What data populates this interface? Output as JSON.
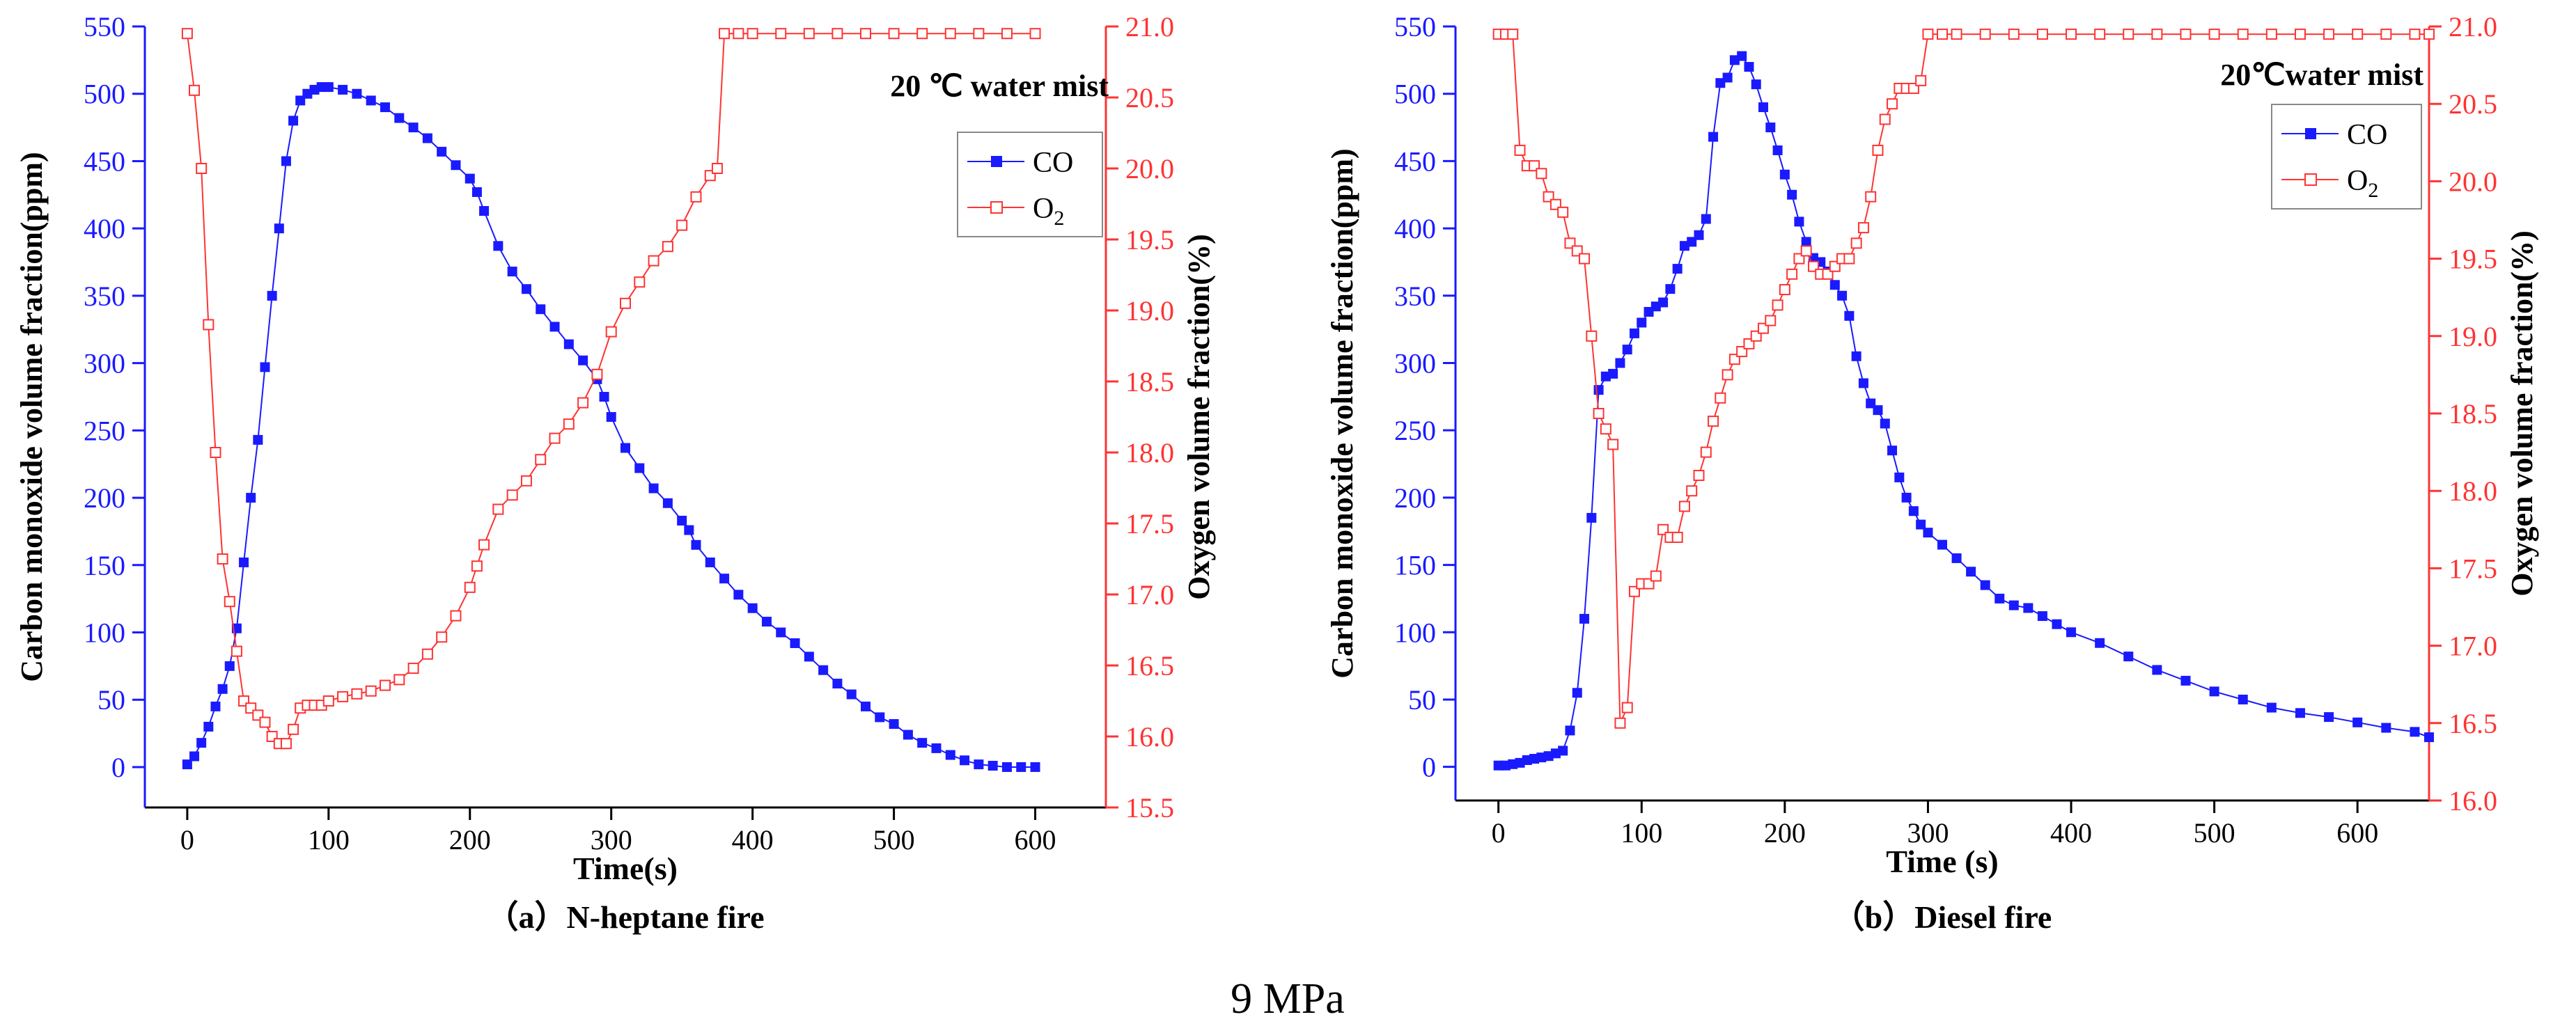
{
  "figure_caption": "9 MPa",
  "colors": {
    "co": "#1a1aff",
    "o2": "#ff3333",
    "axis": "#000000"
  },
  "chart_data": [
    {
      "type": "line",
      "panel_caption": "（a）N-heptane fire",
      "annotation": "20 ℃ water mist",
      "xlabel": "Time(s)",
      "ylabel": "Carbon monoxide volume fraction(ppm)",
      "y2label": "Oxygen volume fraction(%)",
      "xlim": [
        -30,
        650
      ],
      "ylim": [
        -30,
        550
      ],
      "y2lim": [
        15.5,
        21.0
      ],
      "xticks": [
        0,
        100,
        200,
        300,
        400,
        500,
        600
      ],
      "yticks": [
        0,
        50,
        100,
        150,
        200,
        250,
        300,
        350,
        400,
        450,
        500,
        550
      ],
      "y2ticks": [
        15.5,
        16.0,
        16.5,
        17.0,
        17.5,
        18.0,
        18.5,
        19.0,
        19.5,
        20.0,
        20.5,
        21.0
      ],
      "legend": {
        "position": "top-right",
        "entries": [
          "CO",
          "O2"
        ]
      },
      "series": [
        {
          "name": "CO",
          "axis": "left",
          "marker": "filled-square",
          "x": [
            0,
            5,
            10,
            15,
            20,
            25,
            30,
            35,
            40,
            45,
            50,
            55,
            60,
            65,
            70,
            75,
            80,
            85,
            90,
            95,
            100,
            110,
            120,
            130,
            140,
            150,
            160,
            170,
            180,
            190,
            200,
            205,
            210,
            220,
            230,
            240,
            250,
            260,
            270,
            280,
            290,
            295,
            300,
            310,
            320,
            330,
            340,
            350,
            355,
            360,
            370,
            380,
            390,
            400,
            410,
            420,
            430,
            440,
            450,
            460,
            470,
            480,
            490,
            500,
            510,
            520,
            530,
            540,
            550,
            560,
            570,
            580,
            590,
            600
          ],
          "values": [
            2,
            8,
            18,
            30,
            45,
            58,
            75,
            103,
            152,
            200,
            243,
            297,
            350,
            400,
            450,
            480,
            495,
            500,
            503,
            505,
            505,
            503,
            500,
            495,
            490,
            482,
            475,
            467,
            457,
            447,
            437,
            427,
            413,
            387,
            368,
            355,
            340,
            327,
            314,
            302,
            288,
            275,
            260,
            237,
            222,
            207,
            196,
            183,
            176,
            165,
            152,
            140,
            128,
            118,
            108,
            100,
            92,
            82,
            72,
            62,
            54,
            45,
            37,
            32,
            24,
            18,
            14,
            9,
            5,
            2,
            1,
            0,
            0,
            0
          ]
        },
        {
          "name": "O2",
          "axis": "right",
          "marker": "open-square",
          "x": [
            0,
            5,
            10,
            15,
            20,
            25,
            30,
            35,
            40,
            45,
            50,
            55,
            60,
            65,
            70,
            75,
            80,
            85,
            90,
            95,
            100,
            110,
            120,
            130,
            140,
            150,
            160,
            170,
            180,
            190,
            200,
            205,
            210,
            220,
            230,
            240,
            250,
            260,
            270,
            280,
            290,
            300,
            310,
            320,
            330,
            340,
            350,
            360,
            370,
            375,
            380,
            390,
            400,
            420,
            440,
            460,
            480,
            500,
            520,
            540,
            560,
            580,
            600
          ],
          "values": [
            20.95,
            20.55,
            20.0,
            18.9,
            18.0,
            17.25,
            16.95,
            16.6,
            16.25,
            16.2,
            16.15,
            16.1,
            16.0,
            15.95,
            15.95,
            16.05,
            16.2,
            16.22,
            16.22,
            16.22,
            16.25,
            16.28,
            16.3,
            16.32,
            16.36,
            16.4,
            16.48,
            16.58,
            16.7,
            16.85,
            17.05,
            17.2,
            17.35,
            17.6,
            17.7,
            17.8,
            17.95,
            18.1,
            18.2,
            18.35,
            18.55,
            18.85,
            19.05,
            19.2,
            19.35,
            19.45,
            19.6,
            19.8,
            19.95,
            20.0,
            20.95,
            20.95,
            20.95,
            20.95,
            20.95,
            20.95,
            20.95,
            20.95,
            20.95,
            20.95,
            20.95,
            20.95,
            20.95
          ]
        }
      ]
    },
    {
      "type": "line",
      "panel_caption": "（b）Diesel fire",
      "annotation": "20℃water mist",
      "xlabel": "Time (s)",
      "ylabel": "Carbon monoxide volume fraction(ppm)",
      "y2label": "Oxygen volume fraction(%)",
      "xlim": [
        -30,
        650
      ],
      "ylim": [
        -25,
        550
      ],
      "y2lim": [
        16.0,
        21.0
      ],
      "xticks": [
        0,
        100,
        200,
        300,
        400,
        500,
        600
      ],
      "yticks": [
        0,
        50,
        100,
        150,
        200,
        250,
        300,
        350,
        400,
        450,
        500,
        550
      ],
      "y2ticks": [
        16.0,
        16.5,
        17.0,
        17.5,
        18.0,
        18.5,
        19.0,
        19.5,
        20.0,
        20.5,
        21.0
      ],
      "legend": {
        "position": "top-right",
        "entries": [
          "CO",
          "O2"
        ]
      },
      "series": [
        {
          "name": "CO",
          "axis": "left",
          "marker": "filled-square",
          "x": [
            0,
            5,
            10,
            15,
            20,
            25,
            30,
            35,
            40,
            45,
            50,
            55,
            60,
            65,
            70,
            75,
            80,
            85,
            90,
            95,
            100,
            105,
            110,
            115,
            120,
            125,
            130,
            135,
            140,
            145,
            150,
            155,
            160,
            165,
            170,
            175,
            180,
            185,
            190,
            195,
            200,
            205,
            210,
            215,
            220,
            225,
            230,
            235,
            240,
            245,
            250,
            255,
            260,
            265,
            270,
            275,
            280,
            285,
            290,
            295,
            300,
            310,
            320,
            330,
            340,
            350,
            360,
            370,
            380,
            390,
            400,
            420,
            440,
            460,
            480,
            500,
            520,
            540,
            560,
            580,
            600,
            620,
            640,
            650
          ],
          "values": [
            1,
            1,
            2,
            3,
            5,
            6,
            7,
            8,
            10,
            12,
            27,
            55,
            110,
            185,
            280,
            290,
            292,
            300,
            310,
            322,
            330,
            338,
            342,
            345,
            355,
            370,
            387,
            390,
            395,
            407,
            468,
            508,
            512,
            525,
            528,
            520,
            507,
            490,
            475,
            458,
            440,
            425,
            405,
            390,
            378,
            375,
            368,
            358,
            350,
            335,
            305,
            285,
            270,
            265,
            255,
            235,
            215,
            200,
            190,
            180,
            174,
            165,
            155,
            145,
            135,
            125,
            120,
            118,
            112,
            106,
            100,
            92,
            82,
            72,
            64,
            56,
            50,
            44,
            40,
            37,
            33,
            29,
            26,
            22
          ]
        },
        {
          "name": "O2",
          "axis": "right",
          "marker": "open-square",
          "x": [
            0,
            5,
            10,
            15,
            20,
            25,
            30,
            35,
            40,
            45,
            50,
            55,
            60,
            65,
            70,
            75,
            80,
            85,
            90,
            95,
            100,
            105,
            110,
            115,
            120,
            125,
            130,
            135,
            140,
            145,
            150,
            155,
            160,
            165,
            170,
            175,
            180,
            185,
            190,
            195,
            200,
            205,
            210,
            215,
            220,
            225,
            230,
            235,
            240,
            245,
            250,
            255,
            260,
            265,
            270,
            275,
            280,
            285,
            290,
            295,
            300,
            310,
            320,
            340,
            360,
            380,
            400,
            420,
            440,
            460,
            480,
            500,
            520,
            540,
            560,
            580,
            600,
            620,
            640,
            650
          ],
          "values": [
            20.95,
            20.95,
            20.95,
            20.2,
            20.1,
            20.1,
            20.05,
            19.9,
            19.85,
            19.8,
            19.6,
            19.55,
            19.5,
            19.0,
            18.5,
            18.4,
            18.3,
            16.5,
            16.6,
            17.35,
            17.4,
            17.4,
            17.45,
            17.75,
            17.7,
            17.7,
            17.9,
            18.0,
            18.1,
            18.25,
            18.45,
            18.6,
            18.75,
            18.85,
            18.9,
            18.95,
            19.0,
            19.05,
            19.1,
            19.2,
            19.3,
            19.4,
            19.5,
            19.55,
            19.45,
            19.4,
            19.4,
            19.45,
            19.5,
            19.5,
            19.6,
            19.7,
            19.9,
            20.2,
            20.4,
            20.5,
            20.6,
            20.6,
            20.6,
            20.65,
            20.95,
            20.95,
            20.95,
            20.95,
            20.95,
            20.95,
            20.95,
            20.95,
            20.95,
            20.95,
            20.95,
            20.95,
            20.95,
            20.95,
            20.95,
            20.95,
            20.95,
            20.95,
            20.95,
            20.95
          ]
        }
      ]
    }
  ]
}
